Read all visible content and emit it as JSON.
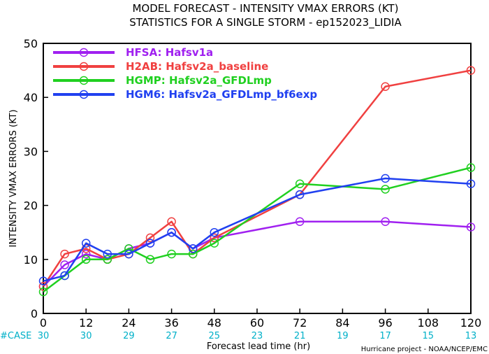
{
  "title_line1": "MODEL FORECAST - INTENSITY VMAX ERRORS (KT)",
  "title_line2": "STATISTICS FOR A SINGLE STORM - ep152023_LIDIA",
  "case_label": "#CASE",
  "credit": "Hurricane project - NOAA/NCEP/EMC",
  "chart_data": {
    "type": "line",
    "xlabel": "Forecast lead time (hr)",
    "ylabel": "INTENSITY VMAX ERRORS (KT)",
    "xlim": [
      0,
      120
    ],
    "ylim": [
      0,
      50
    ],
    "xticks": [
      0,
      12,
      24,
      36,
      48,
      60,
      72,
      84,
      96,
      108,
      120
    ],
    "yticks": [
      0,
      10,
      20,
      30,
      40,
      50
    ],
    "case_counts": [
      {
        "x": 0,
        "n": "30"
      },
      {
        "x": 12,
        "n": "30"
      },
      {
        "x": 24,
        "n": "29"
      },
      {
        "x": 36,
        "n": "27"
      },
      {
        "x": 48,
        "n": "25"
      },
      {
        "x": 60,
        "n": "23"
      },
      {
        "x": 72,
        "n": "21"
      },
      {
        "x": 84,
        "n": "19"
      },
      {
        "x": 96,
        "n": "17"
      },
      {
        "x": 108,
        "n": "15"
      },
      {
        "x": 120,
        "n": "13"
      }
    ],
    "legend_position": "top-left",
    "series": [
      {
        "name": "HFSA: Hafsv1a",
        "color": "#a020f0",
        "x": [
          0,
          6,
          12,
          18,
          24,
          30,
          36,
          42,
          48,
          72,
          96,
          120
        ],
        "y": [
          5,
          9,
          11,
          10,
          12,
          13,
          15,
          12,
          14,
          17,
          17,
          16
        ]
      },
      {
        "name": "H2AB: Hafsv2a_baseline",
        "color": "#f04040",
        "x": [
          0,
          6,
          12,
          18,
          24,
          30,
          36,
          42,
          48,
          72,
          96,
          120
        ],
        "y": [
          5,
          11,
          12,
          10,
          11,
          14,
          17,
          11,
          14,
          22,
          42,
          45
        ]
      },
      {
        "name": "HGMP: Hafsv2a_GFDLmp",
        "color": "#20d020",
        "x": [
          0,
          6,
          12,
          18,
          24,
          30,
          36,
          42,
          48,
          72,
          96,
          120
        ],
        "y": [
          4,
          7,
          10,
          10,
          12,
          10,
          11,
          11,
          13,
          24,
          23,
          27
        ]
      },
      {
        "name": "HGM6: Hafsv2a_GFDLmp_bf6exp",
        "color": "#2040f0",
        "x": [
          0,
          6,
          12,
          18,
          24,
          30,
          36,
          42,
          48,
          72,
          96,
          120
        ],
        "y": [
          6,
          7,
          13,
          11,
          11,
          13,
          15,
          12,
          15,
          22,
          25,
          24
        ]
      }
    ]
  }
}
